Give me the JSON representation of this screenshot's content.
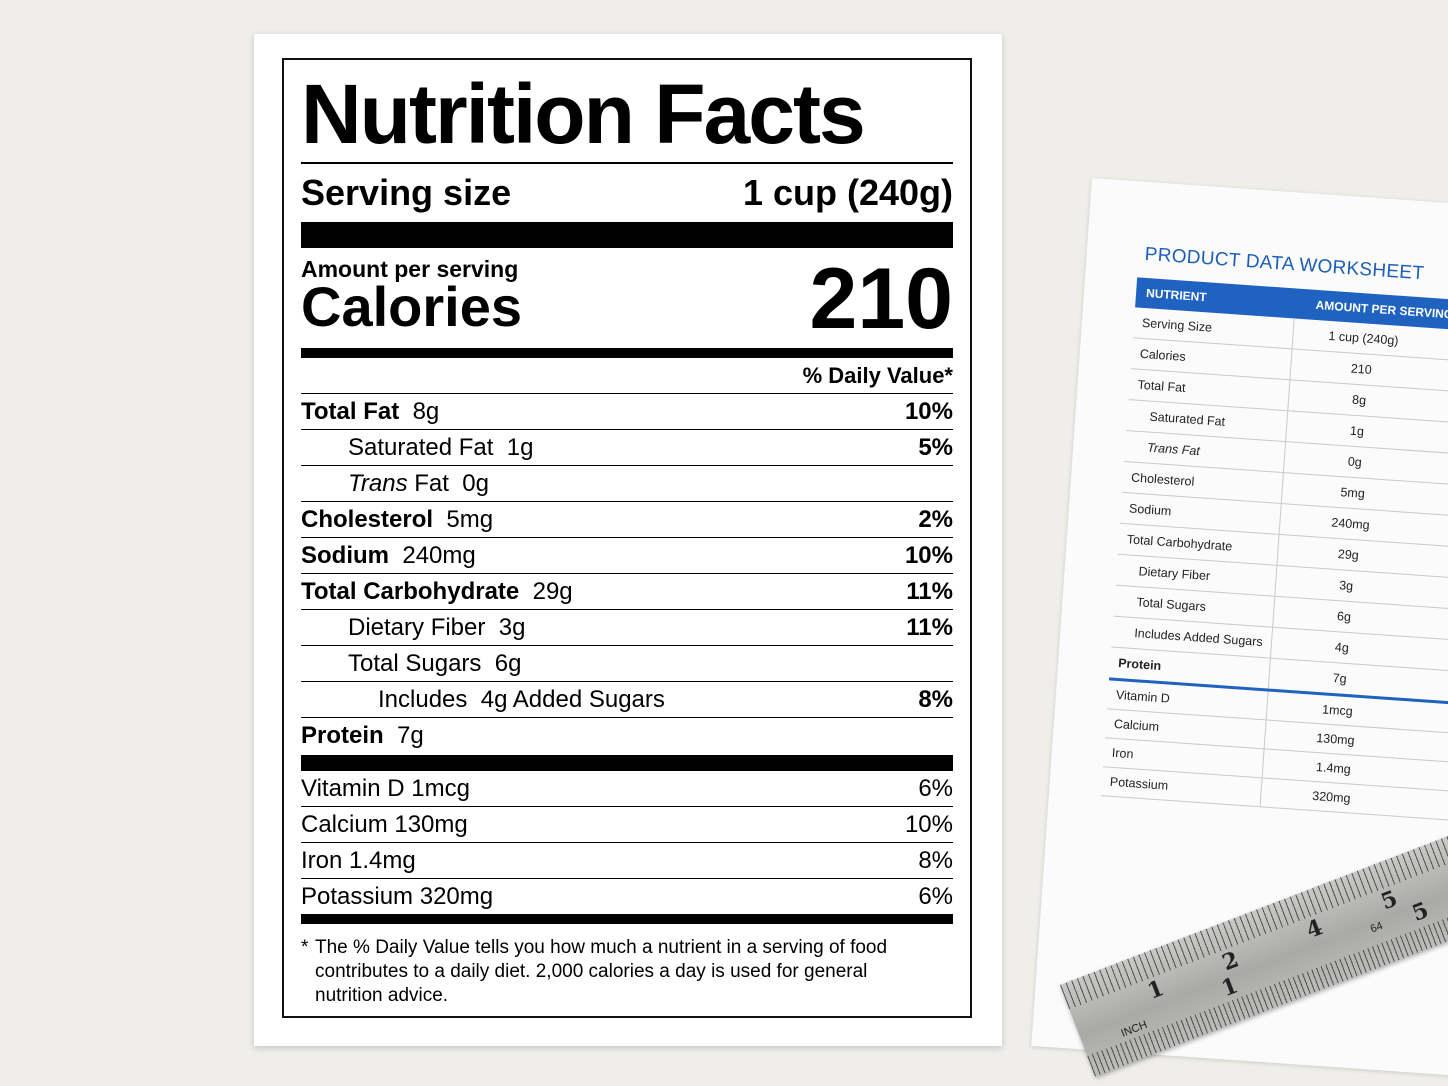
{
  "label": {
    "title": "Nutrition Facts",
    "serving_size_label": "Serving size",
    "serving_size_value": "1 cup (240g)",
    "amount_per_serving": "Amount per serving",
    "calories_label": "Calories",
    "calories_value": "210",
    "daily_value_header": "% Daily Value*",
    "nutrients": [
      {
        "name": "Total Fat",
        "amount": "8g",
        "dv": "10%"
      },
      {
        "name": "Saturated Fat",
        "amount": "1g",
        "dv": "5%"
      },
      {
        "name_italic": "Trans",
        "name": "Fat",
        "amount": "0g",
        "dv": ""
      },
      {
        "name": "Cholesterol",
        "amount": "5mg",
        "dv": "2%"
      },
      {
        "name": "Sodium",
        "amount": "240mg",
        "dv": "10%"
      },
      {
        "name": "Total Carbohydrate",
        "amount": "29g",
        "dv": "11%"
      },
      {
        "name": "Dietary Fiber",
        "amount": "3g",
        "dv": "11%"
      },
      {
        "name": "Total Sugars",
        "amount": "6g",
        "dv": ""
      },
      {
        "name": "Includes",
        "amount": "4g",
        "suffix": "Added Sugars",
        "dv": "8%"
      },
      {
        "name": "Protein",
        "amount": "7g",
        "dv": ""
      }
    ],
    "vitamins": [
      {
        "name": "Vitamin D",
        "amount": "1mcg",
        "dv": "6%"
      },
      {
        "name": "Calcium",
        "amount": "130mg",
        "dv": "10%"
      },
      {
        "name": "Iron",
        "amount": "1.4mg",
        "dv": "8%"
      },
      {
        "name": "Potassium",
        "amount": "320mg",
        "dv": "6%"
      }
    ],
    "footnote_star": "*",
    "footnote": "The % Daily Value tells you how much a nutrient in a serving of food contributes to a daily diet. 2,000 calories a day is used for general nutrition advice."
  },
  "worksheet": {
    "title": "PRODUCT DATA WORKSHEET",
    "col_nutrient": "NUTRIENT",
    "col_amount": "AMOUNT PER SERVING",
    "rows": [
      {
        "name": "Serving Size",
        "value": "1 cup (240g)"
      },
      {
        "name": "Calories",
        "value": "210"
      },
      {
        "name": "Total Fat",
        "value": "8g"
      },
      {
        "name": "Saturated Fat",
        "value": "1g"
      },
      {
        "name": "Trans Fat",
        "value": "0g"
      },
      {
        "name": "Cholesterol",
        "value": "5mg"
      },
      {
        "name": "Sodium",
        "value": "240mg"
      },
      {
        "name": "Total Carbohydrate",
        "value": "29g"
      },
      {
        "name": "Dietary Fiber",
        "value": "3g"
      },
      {
        "name": "Total Sugars",
        "value": "6g"
      },
      {
        "name": "Includes Added Sugars",
        "value": "4g"
      },
      {
        "name": "Protein",
        "value": "7g"
      }
    ],
    "vitamin_rows": [
      {
        "name": "Vitamin D",
        "value": "1mcg"
      },
      {
        "name": "Calcium",
        "value": "130mg"
      },
      {
        "name": "Iron",
        "value": "1.4mg"
      },
      {
        "name": "Potassium",
        "value": "320mg"
      }
    ],
    "accent_color": "#1f62c0"
  },
  "ruler": {
    "unit": "INCH",
    "top_numbers": [
      "1",
      "2",
      "4",
      "5"
    ],
    "bottom_numbers": [
      "1",
      "5"
    ],
    "small_mark": "64"
  }
}
